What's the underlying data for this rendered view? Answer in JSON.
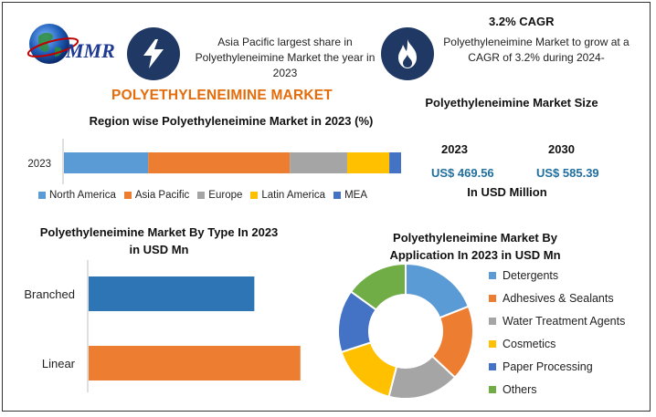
{
  "header": {
    "logo_text": "MMR",
    "share_text": "Asia Pacific largest share in Polyethyleneimine Market the year in 2023",
    "cagr_title": "3.2% CAGR",
    "cagr_text": "Polyethyleneimine Market to grow at a CAGR of 3.2% during 2024-",
    "main_title": "POLYETHYLENEIMINE MARKET",
    "market_size_title": "Polyethyleneimine Market Size"
  },
  "market_size": {
    "year1": "2023",
    "value1": "US$ 469.56",
    "year2": "2030",
    "value2": "US$ 585.39",
    "unit": "In USD Million"
  },
  "colors": {
    "blue": "#5b9bd5",
    "orange": "#ed7d31",
    "gray": "#a5a5a5",
    "yellow": "#ffc000",
    "dark_blue": "#4472c4",
    "green": "#70ad47",
    "bar_blue": "#2e75b6",
    "navy": "#1f3864"
  },
  "icons": {
    "share": "lightning-bolt-icon",
    "cagr": "flame-icon",
    "logo": "globe-icon"
  },
  "chart_data": [
    {
      "type": "bar",
      "orientation": "horizontal-stacked",
      "title": "Region wise Polyethyleneimine Market in 2023 (%)",
      "categories": [
        "2023"
      ],
      "series": [
        {
          "name": "North America",
          "values": [
            25
          ]
        },
        {
          "name": "Asia Pacific",
          "values": [
            42
          ]
        },
        {
          "name": "Europe",
          "values": [
            17
          ]
        },
        {
          "name": "Latin America",
          "values": [
            12.5
          ]
        },
        {
          "name": "MEA",
          "values": [
            3.5
          ]
        }
      ],
      "legend": "bottom"
    },
    {
      "type": "bar",
      "orientation": "horizontal",
      "title": "Polyethyleneimine Market By Type In 2023 in USD Mn",
      "categories": [
        "Branched",
        "Linear"
      ],
      "values": [
        180,
        230
      ],
      "xlim": [
        0,
        260
      ]
    },
    {
      "type": "pie",
      "donut": true,
      "title": "Polyethyleneimine Market By Application In 2023 in USD Mn",
      "labels": [
        "Detergents",
        "Adhesives & Sealants",
        "Water Treatment Agents",
        "Cosmetics",
        "Paper Processing",
        "Others"
      ],
      "values": [
        19,
        18,
        17,
        16,
        15,
        15
      ],
      "legend": "right"
    }
  ]
}
